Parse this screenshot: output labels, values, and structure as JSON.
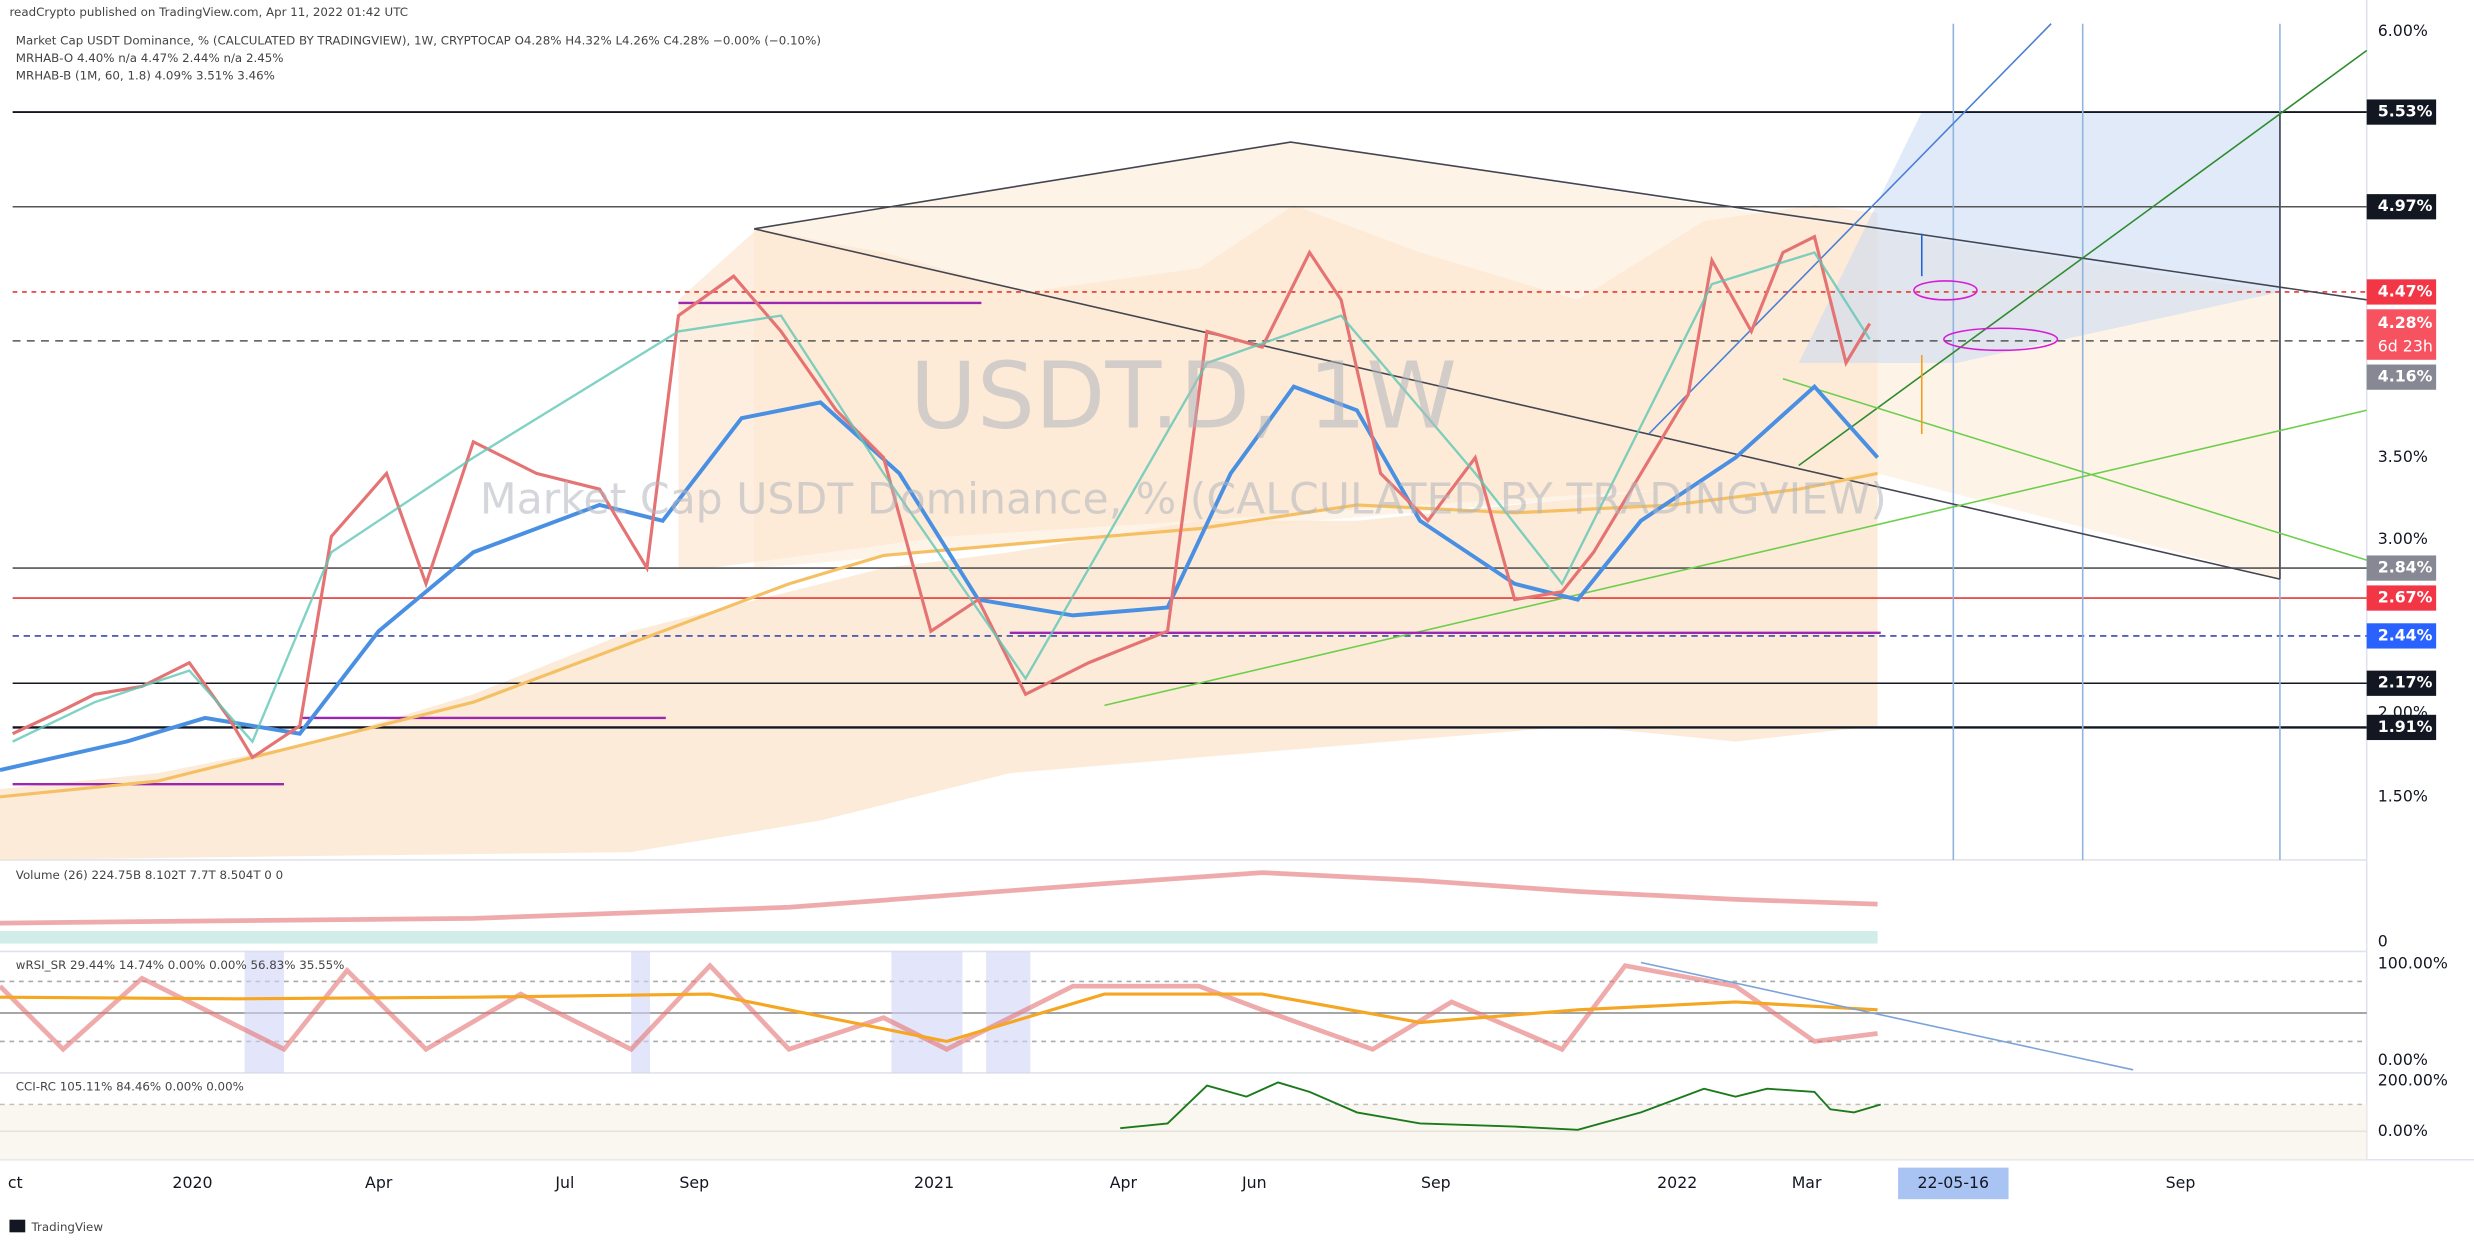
{
  "header": {
    "published": "readCrypto published on TradingView.com, Apr 11, 2022 01:42 UTC",
    "symbol_line": "Market Cap USDT Dominance, % (CALCULATED BY TRADINGVIEW), 1W, CRYPTOCAP  O4.28%  H4.32%  L4.26%  C4.28%  −0.00% (−0.10%)",
    "indicator_1": "MRHAB-O  4.40%  n/a  4.47%  2.44%  n/a  2.45%",
    "indicator_2": "MRHAB-B (1M, 60, 1.8)  4.09%  3.51%  3.46%"
  },
  "watermark": {
    "symbol": "USDT.D, 1W",
    "description": "Market Cap USDT Dominance, % (CALCULATED BY TRADINGVIEW)"
  },
  "price_axis": [
    "6.00%",
    "3.50%",
    "3.00%",
    "2.00%",
    "1.50%"
  ],
  "price_badges": [
    "5.53%",
    "4.97%",
    "4.47%",
    "4.28%",
    "4.16%",
    "2.84%",
    "2.67%",
    "2.44%",
    "2.17%",
    "1.91%"
  ],
  "countdown": "6d 23h",
  "panes": {
    "volume": {
      "legend": "Volume (26)  224.75B  8.102T  7.7T  8.504T  0  0",
      "axis": [
        "0"
      ]
    },
    "wrsi": {
      "legend": "wRSI_SR  29.44%  14.74%  0.00%  0.00%  56.83%  35.55%",
      "axis": [
        "100.00%",
        "0.00%"
      ]
    },
    "cci": {
      "legend": "CCI-RC  105.11%  84.46%  0.00%  0.00%",
      "axis": [
        "200.00%",
        "0.00%"
      ]
    }
  },
  "time_axis": [
    "ct",
    "2020",
    "Apr",
    "Jul",
    "Sep",
    "2021",
    "Apr",
    "Jun",
    "Sep",
    "2022",
    "Mar",
    "Sep"
  ],
  "time_cursor": "22-05-16",
  "footer": "TradingView"
}
